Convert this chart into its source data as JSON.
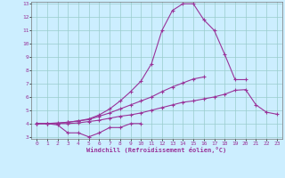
{
  "xlabel": "Windchill (Refroidissement éolien,°C)",
  "bg_color": "#cceeff",
  "line_color": "#993399",
  "grid_color": "#99cccc",
  "x_values": [
    0,
    1,
    2,
    3,
    4,
    5,
    6,
    7,
    8,
    9,
    10,
    11,
    12,
    13,
    14,
    15,
    16,
    17,
    18,
    19,
    20,
    21,
    22,
    23
  ],
  "line1": [
    4.0,
    4.0,
    3.9,
    3.3,
    3.3,
    3.0,
    3.3,
    3.7,
    3.7,
    4.0,
    4.0,
    null,
    null,
    null,
    null,
    null,
    null,
    null,
    null,
    null,
    null,
    null,
    null,
    null
  ],
  "line2": [
    4.0,
    4.0,
    4.0,
    4.0,
    4.05,
    4.15,
    4.25,
    4.4,
    4.55,
    4.65,
    4.8,
    5.0,
    5.2,
    5.4,
    5.6,
    5.7,
    5.85,
    6.0,
    6.2,
    6.5,
    6.55,
    5.4,
    4.85,
    4.7
  ],
  "line3": [
    4.0,
    4.0,
    4.05,
    4.1,
    4.2,
    4.3,
    4.55,
    4.8,
    5.1,
    5.4,
    5.7,
    6.0,
    6.4,
    6.75,
    7.05,
    7.35,
    7.5,
    null,
    null,
    null,
    null,
    null,
    null,
    null
  ],
  "line4": [
    4.0,
    4.0,
    4.0,
    4.1,
    4.2,
    4.35,
    4.65,
    5.1,
    5.7,
    6.4,
    7.2,
    8.5,
    11.0,
    12.5,
    13.0,
    13.0,
    11.8,
    11.0,
    9.2,
    7.3,
    7.3,
    null,
    null,
    null
  ],
  "ylim": [
    3,
    13
  ],
  "xlim": [
    0,
    23
  ],
  "yticks": [
    3,
    4,
    5,
    6,
    7,
    8,
    9,
    10,
    11,
    12,
    13
  ],
  "xticks": [
    0,
    1,
    2,
    3,
    4,
    5,
    6,
    7,
    8,
    9,
    10,
    11,
    12,
    13,
    14,
    15,
    16,
    17,
    18,
    19,
    20,
    21,
    22,
    23
  ]
}
